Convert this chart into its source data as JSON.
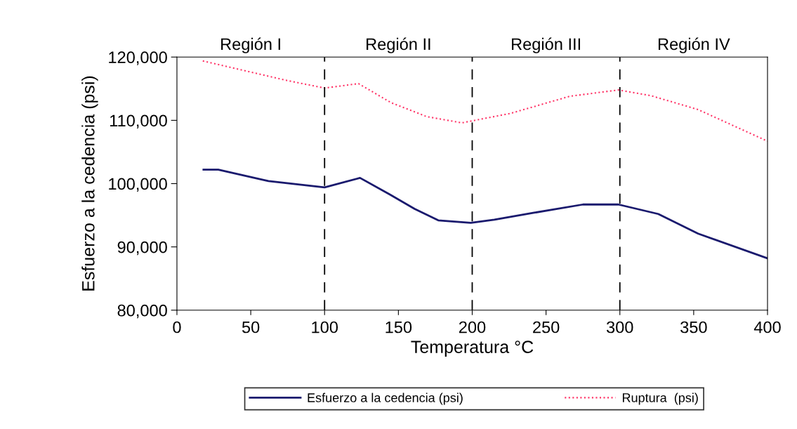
{
  "chart_data": {
    "type": "line",
    "xlabel": "Temperatura °C",
    "ylabel": "Esfuerzo a la cedencia (psi)",
    "series": [
      {
        "name": "Esfuerzo a la cedencia (psi)",
        "color": "#1a1a6e",
        "line_style": "solid",
        "x": [
          18,
          28,
          62,
          100,
          124,
          144,
          161,
          177,
          199,
          215,
          242,
          275,
          299,
          326,
          353,
          400
        ],
        "values": [
          102200,
          102200,
          100400,
          99400,
          100900,
          98300,
          96000,
          94200,
          93800,
          94300,
          95400,
          96700,
          96700,
          95200,
          92100,
          88200
        ]
      },
      {
        "name": "Ruptura  (psi)",
        "color": "#ff3366",
        "line_style": "dotted",
        "x": [
          17.5,
          43,
          74.5,
          100,
          123,
          145,
          169,
          193,
          226,
          266,
          299,
          321,
          353,
          400
        ],
        "values": [
          119400,
          118000,
          116300,
          115100,
          115800,
          112800,
          110600,
          109600,
          111100,
          113800,
          114800,
          113900,
          111700,
          106700
        ]
      }
    ],
    "xlim": [
      0,
      400
    ],
    "xticks": [
      0,
      50,
      100,
      150,
      200,
      250,
      300,
      350,
      400
    ],
    "ylim": [
      80000,
      120000
    ],
    "yticks": [
      {
        "value": 80000,
        "label": "80,000"
      },
      {
        "value": 90000,
        "label": "90,000"
      },
      {
        "value": 100000,
        "label": "100,000"
      },
      {
        "value": 110000,
        "label": "110,000"
      },
      {
        "value": 120000,
        "label": "120,000"
      }
    ],
    "ref_lines": [
      {
        "axis": "x",
        "value": 100,
        "color": "#000000",
        "line_style": "dashed"
      },
      {
        "axis": "x",
        "value": 200,
        "color": "#000000",
        "line_style": "dashed"
      },
      {
        "axis": "x",
        "value": 300,
        "color": "#000000",
        "line_style": "dashed"
      }
    ],
    "annotations": [
      "Región I",
      "Región II",
      "Región III",
      "Región IV"
    ],
    "grid": false,
    "legend": "bottom",
    "marker": "none"
  }
}
